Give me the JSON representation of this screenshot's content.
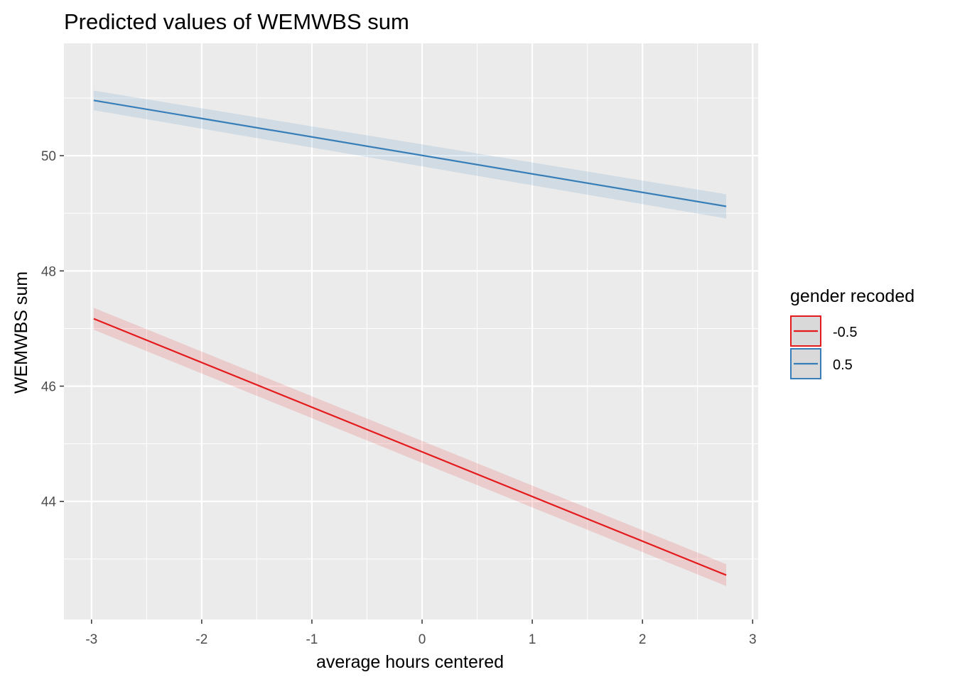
{
  "chart_data": {
    "type": "line",
    "title": "Predicted values of WEMWBS sum",
    "xlabel": "average hours centered",
    "ylabel": "WEMWBS sum",
    "xlim": [
      -3.25,
      3.05
    ],
    "ylim": [
      41.95,
      51.95
    ],
    "x_ticks": [
      -3,
      -2,
      -1,
      0,
      1,
      2,
      3
    ],
    "x_tick_labels": [
      "-3",
      "-2",
      "-1",
      "0",
      "1",
      "2",
      "3"
    ],
    "y_ticks": [
      44,
      46,
      48,
      50
    ],
    "y_tick_labels": [
      "44",
      "46",
      "48",
      "50"
    ],
    "grid": true,
    "legend": {
      "title": "gender recoded",
      "placement": "right",
      "entries": [
        "-0.5",
        "0.5"
      ]
    },
    "series": [
      {
        "name": "-0.5",
        "color": "#e41a1c",
        "x": [
          -2.98,
          2.76
        ],
        "y": [
          47.17,
          42.72
        ],
        "ci_low": [
          46.98,
          42.53
        ],
        "ci_high": [
          47.36,
          42.91
        ]
      },
      {
        "name": "0.5",
        "color": "#377eb8",
        "x": [
          -2.98,
          2.76
        ],
        "y": [
          50.96,
          49.12
        ],
        "ci_low": [
          50.79,
          48.91
        ],
        "ci_high": [
          51.13,
          49.33
        ]
      }
    ]
  }
}
